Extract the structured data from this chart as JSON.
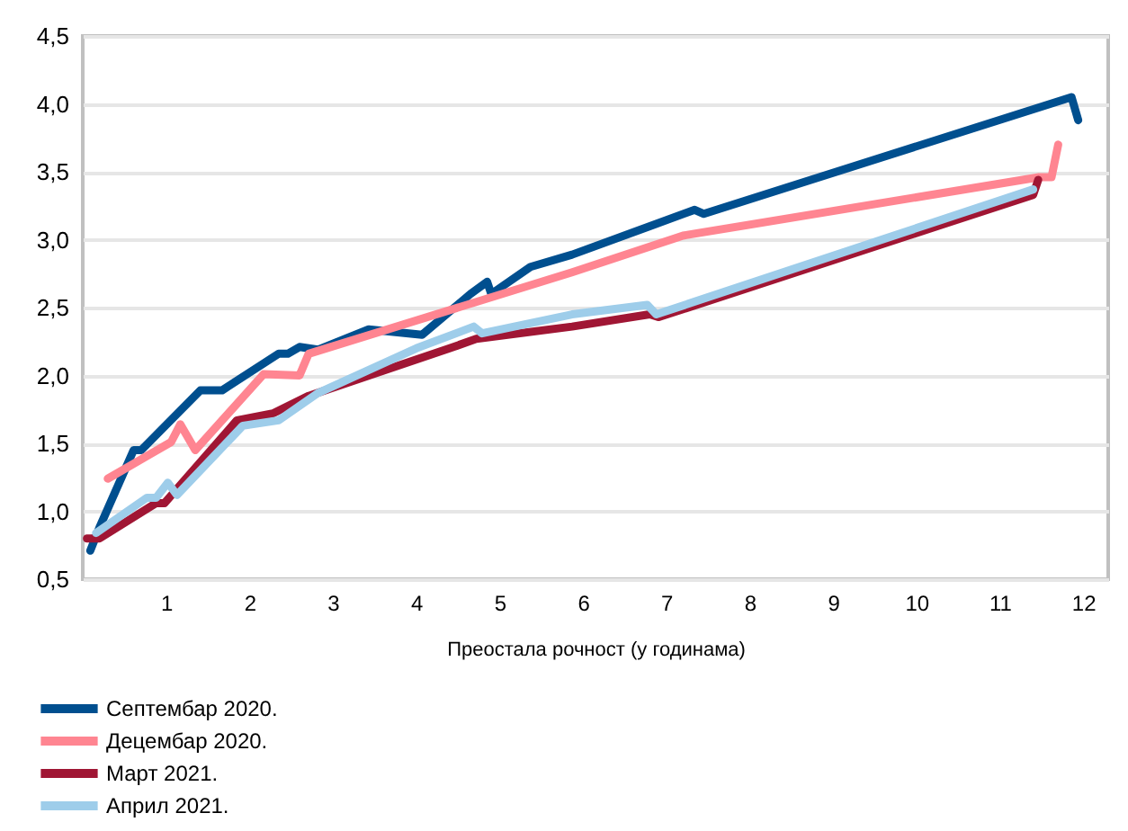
{
  "chart_data": {
    "type": "line",
    "xlabel": "Преостала рочност (у годинама)",
    "xlim": [
      0,
      12.3
    ],
    "xticks": [
      1,
      2,
      3,
      4,
      5,
      6,
      7,
      8,
      9,
      10,
      11,
      12
    ],
    "ylim": [
      0.5,
      4.5
    ],
    "yticks": [
      {
        "value": 0.5,
        "label": "0,5"
      },
      {
        "value": 1,
        "label": "1,0"
      },
      {
        "value": 1.5,
        "label": "1,5"
      },
      {
        "value": 2,
        "label": "2,0"
      },
      {
        "value": 2.5,
        "label": "2,5"
      },
      {
        "value": 3,
        "label": "3,0"
      },
      {
        "value": 3.5,
        "label": "3,5"
      },
      {
        "value": 4,
        "label": "4,0"
      },
      {
        "value": 4.5,
        "label": "4,5"
      }
    ],
    "grid": "y",
    "legend": "bottom",
    "marker": "none",
    "line_style": "solid",
    "series": [
      {
        "name": "Септембар 2020.",
        "color": "#004f8f",
        "x": [
          0.09,
          0.2,
          0.61,
          0.7,
          1.41,
          1.67,
          2.35,
          2.46,
          2.6,
          2.82,
          3.43,
          4.07,
          4.65,
          4.85,
          4.9,
          5.37,
          5.87,
          7.34,
          7.45,
          11.86,
          11.94
        ],
        "values": [
          0.71,
          0.88,
          1.45,
          1.45,
          1.89,
          1.89,
          2.16,
          2.16,
          2.21,
          2.19,
          2.34,
          2.3,
          2.6,
          2.69,
          2.6,
          2.8,
          2.89,
          3.22,
          3.19,
          4.05,
          3.88
        ]
      },
      {
        "name": "Децембар 2020.",
        "color": "#ff8591",
        "x": [
          0.3,
          1.06,
          1.17,
          1.35,
          2.17,
          2.6,
          2.71,
          5.87,
          7.2,
          11.47,
          11.62,
          11.7
        ],
        "values": [
          1.24,
          1.51,
          1.64,
          1.45,
          2.01,
          2.0,
          2.16,
          2.76,
          3.03,
          3.46,
          3.46,
          3.7
        ]
      },
      {
        "name": "Март 2021.",
        "color": "#a01634",
        "x": [
          0.05,
          0.2,
          0.88,
          0.98,
          1.85,
          2.28,
          2.71,
          4.4,
          4.72,
          5.87,
          6.8,
          6.91,
          11.4,
          11.46
        ],
        "values": [
          0.8,
          0.8,
          1.06,
          1.06,
          1.67,
          1.72,
          1.85,
          2.2,
          2.27,
          2.36,
          2.45,
          2.43,
          3.33,
          3.44
        ]
      },
      {
        "name": "Април 2021.",
        "color": "#9ecdea",
        "x": [
          0.16,
          0.77,
          0.88,
          1.02,
          1.13,
          1.92,
          2.35,
          2.82,
          4.0,
          4.69,
          4.79,
          5.87,
          6.77,
          6.88,
          11.4
        ],
        "values": [
          0.84,
          1.1,
          1.1,
          1.21,
          1.12,
          1.63,
          1.67,
          1.87,
          2.2,
          2.36,
          2.31,
          2.45,
          2.52,
          2.45,
          3.37
        ]
      }
    ]
  }
}
